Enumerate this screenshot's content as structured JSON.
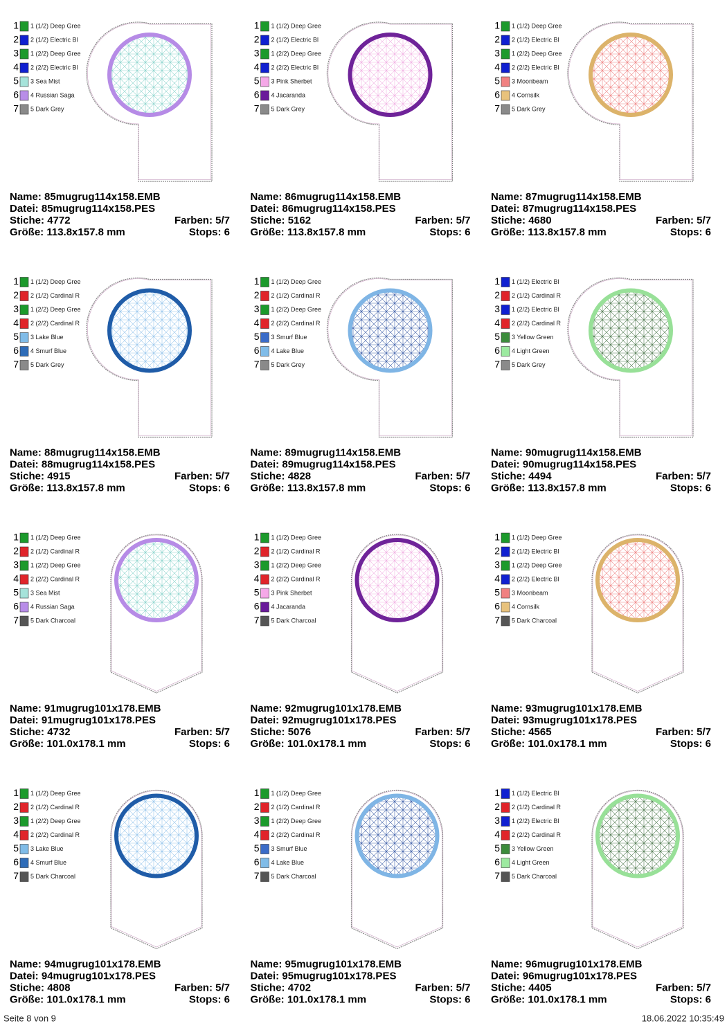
{
  "field_labels": {
    "name": "Name:",
    "file": "Datei:",
    "stitches": "Stiche:",
    "colors": "Farben:",
    "size": "Größe:",
    "stops": "Stops:"
  },
  "designs": [
    {
      "name": "85mugrug114x158.EMB",
      "file": "85mugrug114x158.PES",
      "stitches": 4772,
      "colors": "5/7",
      "size": "113.8x157.8 mm",
      "stops": 6,
      "shape": "tab",
      "ring": "#b68be6",
      "fill": "#7fd0c8",
      "threads": [
        {
          "n": 1,
          "label": "1 (1/2) Deep Gree",
          "color": "#1c9a2c"
        },
        {
          "n": 2,
          "label": "2 (1/2) Electric Bl",
          "color": "#1020d0"
        },
        {
          "n": 3,
          "label": "1 (2/2) Deep Gree",
          "color": "#1c9a2c"
        },
        {
          "n": 4,
          "label": "2 (2/2) Electric Bl",
          "color": "#1020d0"
        },
        {
          "n": 5,
          "label": "3 Sea Mist",
          "color": "#a6e3da"
        },
        {
          "n": 6,
          "label": "4 Russian Saga",
          "color": "#b88de8"
        },
        {
          "n": 7,
          "label": "5 Dark Grey",
          "color": "#8a8a8a"
        }
      ]
    },
    {
      "name": "86mugrug114x158.EMB",
      "file": "86mugrug114x158.PES",
      "stitches": 5162,
      "colors": "5/7",
      "size": "113.8x157.8 mm",
      "stops": 6,
      "shape": "tab",
      "ring": "#6f2399",
      "fill": "#f0a8e0",
      "threads": [
        {
          "n": 1,
          "label": "1 (1/2) Deep Gree",
          "color": "#1c9a2c"
        },
        {
          "n": 2,
          "label": "2 (1/2) Electric Bl",
          "color": "#1020d0"
        },
        {
          "n": 3,
          "label": "1 (2/2) Deep Gree",
          "color": "#1c9a2c"
        },
        {
          "n": 4,
          "label": "2 (2/2) Electric Bl",
          "color": "#1020d0"
        },
        {
          "n": 5,
          "label": "3 Pink Sherbet",
          "color": "#f5a8e8"
        },
        {
          "n": 6,
          "label": "4 Jacaranda",
          "color": "#6a1a9a"
        },
        {
          "n": 7,
          "label": "5 Dark Grey",
          "color": "#8a8a8a"
        }
      ]
    },
    {
      "name": "87mugrug114x158.EMB",
      "file": "87mugrug114x158.PES",
      "stitches": 4680,
      "colors": "5/7",
      "size": "113.8x157.8 mm",
      "stops": 6,
      "shape": "tab",
      "ring": "#dcb36a",
      "fill": "#ee7777",
      "threads": [
        {
          "n": 1,
          "label": "1 (1/2) Deep Gree",
          "color": "#1c9a2c"
        },
        {
          "n": 2,
          "label": "2 (1/2) Electric Bl",
          "color": "#1020d0"
        },
        {
          "n": 3,
          "label": "1 (2/2) Deep Gree",
          "color": "#1c9a2c"
        },
        {
          "n": 4,
          "label": "2 (2/2) Electric Bl",
          "color": "#1020d0"
        },
        {
          "n": 5,
          "label": "3 Moonbeam",
          "color": "#f08080"
        },
        {
          "n": 6,
          "label": "4 Cornsilk",
          "color": "#e8c27c"
        },
        {
          "n": 7,
          "label": "5 Dark Grey",
          "color": "#8a8a8a"
        }
      ]
    },
    {
      "name": "88mugrug114x158.EMB",
      "file": "88mugrug114x158.PES",
      "stitches": 4915,
      "colors": "5/7",
      "size": "113.8x157.8 mm",
      "stops": 6,
      "shape": "tab",
      "ring": "#1f5ca8",
      "fill": "#8cc0ea",
      "threads": [
        {
          "n": 1,
          "label": "1 (1/2) Deep Gree",
          "color": "#1c9a2c"
        },
        {
          "n": 2,
          "label": "2 (1/2) Cardinal R",
          "color": "#e0242a"
        },
        {
          "n": 3,
          "label": "1 (2/2) Deep Gree",
          "color": "#1c9a2c"
        },
        {
          "n": 4,
          "label": "2 (2/2) Cardinal R",
          "color": "#e0242a"
        },
        {
          "n": 5,
          "label": "3 Lake Blue",
          "color": "#80bce8"
        },
        {
          "n": 6,
          "label": "4 Smurf Blue",
          "color": "#2e6cb8"
        },
        {
          "n": 7,
          "label": "5 Dark Grey",
          "color": "#8a8a8a"
        }
      ]
    },
    {
      "name": "89mugrug114x158.EMB",
      "file": "89mugrug114x158.PES",
      "stitches": 4828,
      "colors": "5/7",
      "size": "113.8x157.8 mm",
      "stops": 6,
      "shape": "tab",
      "ring": "#7fb5e5",
      "fill": "#2a4fa0",
      "threads": [
        {
          "n": 1,
          "label": "1 (1/2) Deep Gree",
          "color": "#1c9a2c"
        },
        {
          "n": 2,
          "label": "2 (1/2) Cardinal R",
          "color": "#e0242a"
        },
        {
          "n": 3,
          "label": "1 (2/2) Deep Gree",
          "color": "#1c9a2c"
        },
        {
          "n": 4,
          "label": "2 (2/2) Cardinal R",
          "color": "#e0242a"
        },
        {
          "n": 5,
          "label": "3 Smurf Blue",
          "color": "#3a6cc8"
        },
        {
          "n": 6,
          "label": "4 Lake Blue",
          "color": "#80bce8"
        },
        {
          "n": 7,
          "label": "5 Dark Grey",
          "color": "#8a8a8a"
        }
      ]
    },
    {
      "name": "90mugrug114x158.EMB",
      "file": "90mugrug114x158.PES",
      "stitches": 4494,
      "colors": "5/7",
      "size": "113.8x157.8 mm",
      "stops": 6,
      "shape": "tab",
      "ring": "#98e098",
      "fill": "#3a6a3a",
      "threads": [
        {
          "n": 1,
          "label": "1 (1/2) Electric Bl",
          "color": "#1020d0"
        },
        {
          "n": 2,
          "label": "2 (1/2) Cardinal R",
          "color": "#e0242a"
        },
        {
          "n": 3,
          "label": "1 (2/2) Electric Bl",
          "color": "#1020d0"
        },
        {
          "n": 4,
          "label": "2 (2/2) Cardinal R",
          "color": "#e0242a"
        },
        {
          "n": 5,
          "label": "3 Yellow Green",
          "color": "#3c8c3c"
        },
        {
          "n": 6,
          "label": "4 Light Green",
          "color": "#9ceaa0"
        },
        {
          "n": 7,
          "label": "5 Dark Grey",
          "color": "#8a8a8a"
        }
      ]
    },
    {
      "name": "91mugrug101x178.EMB",
      "file": "91mugrug101x178.PES",
      "stitches": 4732,
      "colors": "5/7",
      "size": "101.0x178.1 mm",
      "stops": 6,
      "shape": "point",
      "ring": "#b68be6",
      "fill": "#7fd0c8",
      "threads": [
        {
          "n": 1,
          "label": "1 (1/2) Deep Gree",
          "color": "#1c9a2c"
        },
        {
          "n": 2,
          "label": "2 (1/2) Cardinal R",
          "color": "#e0242a"
        },
        {
          "n": 3,
          "label": "1 (2/2) Deep Gree",
          "color": "#1c9a2c"
        },
        {
          "n": 4,
          "label": "2 (2/2) Cardinal R",
          "color": "#e0242a"
        },
        {
          "n": 5,
          "label": "3 Sea Mist",
          "color": "#a6e3da"
        },
        {
          "n": 6,
          "label": "4 Russian Saga",
          "color": "#b88de8"
        },
        {
          "n": 7,
          "label": "5 Dark Charcoal",
          "color": "#555555"
        }
      ]
    },
    {
      "name": "92mugrug101x178.EMB",
      "file": "92mugrug101x178.PES",
      "stitches": 5076,
      "colors": "5/7",
      "size": "101.0x178.1 mm",
      "stops": 6,
      "shape": "point",
      "ring": "#6f2399",
      "fill": "#f0a8e0",
      "threads": [
        {
          "n": 1,
          "label": "1 (1/2) Deep Gree",
          "color": "#1c9a2c"
        },
        {
          "n": 2,
          "label": "2 (1/2) Cardinal R",
          "color": "#e0242a"
        },
        {
          "n": 3,
          "label": "1 (2/2) Deep Gree",
          "color": "#1c9a2c"
        },
        {
          "n": 4,
          "label": "2 (2/2) Cardinal R",
          "color": "#e0242a"
        },
        {
          "n": 5,
          "label": "3 Pink Sherbet",
          "color": "#f5a8e8"
        },
        {
          "n": 6,
          "label": "4 Jacaranda",
          "color": "#6a1a9a"
        },
        {
          "n": 7,
          "label": "5 Dark Charcoal",
          "color": "#555555"
        }
      ]
    },
    {
      "name": "93mugrug101x178.EMB",
      "file": "93mugrug101x178.PES",
      "stitches": 4565,
      "colors": "5/7",
      "size": "101.0x178.1 mm",
      "stops": 6,
      "shape": "point",
      "ring": "#dcb36a",
      "fill": "#ee7777",
      "threads": [
        {
          "n": 1,
          "label": "1 (1/2) Deep Gree",
          "color": "#1c9a2c"
        },
        {
          "n": 2,
          "label": "2 (1/2) Electric Bl",
          "color": "#1020d0"
        },
        {
          "n": 3,
          "label": "1 (2/2) Deep Gree",
          "color": "#1c9a2c"
        },
        {
          "n": 4,
          "label": "2 (2/2) Electric Bl",
          "color": "#1020d0"
        },
        {
          "n": 5,
          "label": "3 Moonbeam",
          "color": "#f08080"
        },
        {
          "n": 6,
          "label": "4 Cornsilk",
          "color": "#e8c27c"
        },
        {
          "n": 7,
          "label": "5 Dark Charcoal",
          "color": "#555555"
        }
      ]
    },
    {
      "name": "94mugrug101x178.EMB",
      "file": "94mugrug101x178.PES",
      "stitches": 4808,
      "colors": "5/7",
      "size": "101.0x178.1 mm",
      "stops": 6,
      "shape": "point",
      "ring": "#1f5ca8",
      "fill": "#8cc0ea",
      "threads": [
        {
          "n": 1,
          "label": "1 (1/2) Deep Gree",
          "color": "#1c9a2c"
        },
        {
          "n": 2,
          "label": "2 (1/2) Cardinal R",
          "color": "#e0242a"
        },
        {
          "n": 3,
          "label": "1 (2/2) Deep Gree",
          "color": "#1c9a2c"
        },
        {
          "n": 4,
          "label": "2 (2/2) Cardinal R",
          "color": "#e0242a"
        },
        {
          "n": 5,
          "label": "3 Lake Blue",
          "color": "#80bce8"
        },
        {
          "n": 6,
          "label": "4 Smurf Blue",
          "color": "#2e6cb8"
        },
        {
          "n": 7,
          "label": "5 Dark Charcoal",
          "color": "#555555"
        }
      ]
    },
    {
      "name": "95mugrug101x178.EMB",
      "file": "95mugrug101x178.PES",
      "stitches": 4702,
      "colors": "5/7",
      "size": "101.0x178.1 mm",
      "stops": 6,
      "shape": "point",
      "ring": "#7fb5e5",
      "fill": "#2a4fa0",
      "threads": [
        {
          "n": 1,
          "label": "1 (1/2) Deep Gree",
          "color": "#1c9a2c"
        },
        {
          "n": 2,
          "label": "2 (1/2) Cardinal R",
          "color": "#e0242a"
        },
        {
          "n": 3,
          "label": "1 (2/2) Deep Gree",
          "color": "#1c9a2c"
        },
        {
          "n": 4,
          "label": "2 (2/2) Cardinal R",
          "color": "#e0242a"
        },
        {
          "n": 5,
          "label": "3 Smurf Blue",
          "color": "#3a6cc8"
        },
        {
          "n": 6,
          "label": "4 Lake Blue",
          "color": "#80bce8"
        },
        {
          "n": 7,
          "label": "5 Dark Charcoal",
          "color": "#555555"
        }
      ]
    },
    {
      "name": "96mugrug101x178.EMB",
      "file": "96mugrug101x178.PES",
      "stitches": 4405,
      "colors": "5/7",
      "size": "101.0x178.1 mm",
      "stops": 6,
      "shape": "point",
      "ring": "#98e098",
      "fill": "#3a6a3a",
      "threads": [
        {
          "n": 1,
          "label": "1 (1/2) Electric Bl",
          "color": "#1020d0"
        },
        {
          "n": 2,
          "label": "2 (1/2) Cardinal R",
          "color": "#e0242a"
        },
        {
          "n": 3,
          "label": "1 (2/2) Electric Bl",
          "color": "#1020d0"
        },
        {
          "n": 4,
          "label": "2 (2/2) Cardinal R",
          "color": "#e0242a"
        },
        {
          "n": 5,
          "label": "3 Yellow Green",
          "color": "#3c8c3c"
        },
        {
          "n": 6,
          "label": "4 Light Green",
          "color": "#9ceaa0"
        },
        {
          "n": 7,
          "label": "5 Dark Charcoal",
          "color": "#555555"
        }
      ]
    }
  ],
  "footer": {
    "page": "Seite 8 von 9",
    "date": "18.06.2022 10:35:49"
  }
}
